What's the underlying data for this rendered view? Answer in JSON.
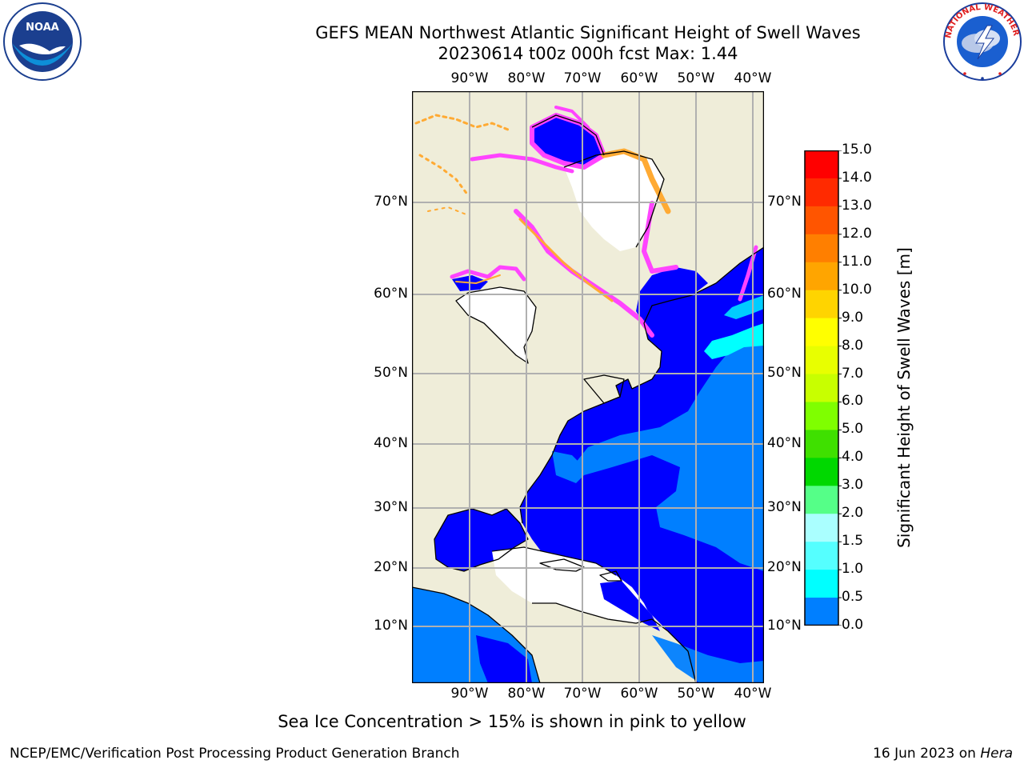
{
  "header": {
    "title_line1": "GEFS MEAN Northwest Atlantic Significant Height of Swell Waves",
    "title_line2": "20230614 t00z 000h fcst   Max: 1.44"
  },
  "logos": {
    "noaa": "NOAA",
    "nws_ring": "NATIONAL WEATHER SERVICE"
  },
  "map": {
    "lon_labels": [
      "90°W",
      "80°W",
      "70°W",
      "60°W",
      "50°W",
      "40°W"
    ],
    "lat_labels": [
      "70°N",
      "60°N",
      "50°N",
      "40°N",
      "30°N",
      "20°N",
      "10°N"
    ],
    "colors": {
      "land": "#efedd9",
      "ocean_low": "#0000ff",
      "ocean_mid": "#007fff",
      "ocean_hi": "#00ffff",
      "ice_pink": "#ff44ff",
      "ice_orange": "#ffaa33",
      "grid": "#b0b0b0"
    }
  },
  "colorbar": {
    "label": "Significant Height of Swell Waves [m]",
    "ticks": [
      "15.0",
      "14.0",
      "13.0",
      "12.0",
      "11.0",
      "10.0",
      "9.0",
      "8.0",
      "7.0",
      "6.0",
      "5.0",
      "4.0",
      "3.0",
      "2.0",
      "1.5",
      "1.0",
      "0.5",
      "0.0"
    ],
    "colors": [
      "#ff0000",
      "#ff2a00",
      "#ff5500",
      "#ff7f00",
      "#ffa500",
      "#ffd400",
      "#ffff00",
      "#e8ff00",
      "#c8ff00",
      "#7fff00",
      "#3fe000",
      "#00d800",
      "#55ff88",
      "#aaffff",
      "#55ffff",
      "#00ffff",
      "#007fff",
      "#0000ff"
    ]
  },
  "footer": {
    "note": "Sea Ice Concentration > 15% is shown in pink to yellow",
    "left": "NCEP/EMC/Verification Post Processing Product Generation Branch",
    "right_prefix": "16 Jun 2023 on ",
    "right_host": "Hera"
  }
}
